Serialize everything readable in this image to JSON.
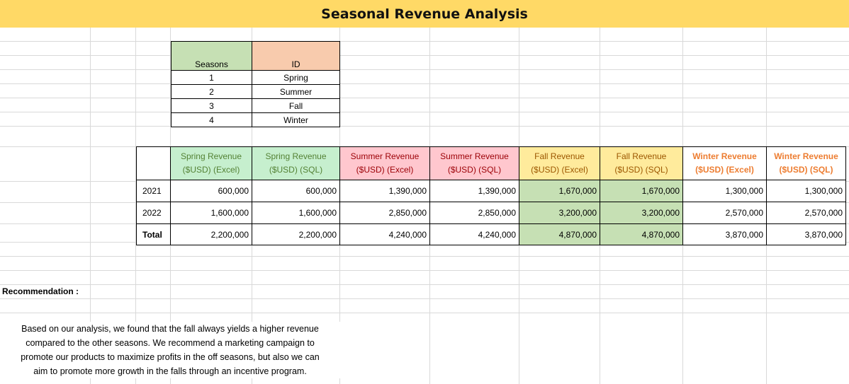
{
  "title": "Seasonal Revenue Analysis",
  "id_table": {
    "headers": [
      "Seasons",
      "ID"
    ],
    "rows": [
      [
        "1",
        "Spring"
      ],
      [
        "2",
        "Summer"
      ],
      [
        "3",
        "Fall"
      ],
      [
        "4",
        "Winter"
      ]
    ]
  },
  "revenue_table": {
    "headers": [
      [
        "Spring Revenue",
        "($USD) (Excel)"
      ],
      [
        "Spring Revenue",
        "($USD) (SQL)"
      ],
      [
        "Summer Revenue",
        "($USD) (Excel)"
      ],
      [
        "Summer Revenue",
        "($USD) (SQL)"
      ],
      [
        "Fall Revenue",
        "($USD) (Excel)"
      ],
      [
        "Fall Revenue",
        "($USD) (SQL)"
      ],
      [
        "Winter Revenue",
        "($USD) (Excel)"
      ],
      [
        "Winter Revenue",
        "($USD) (SQL)"
      ]
    ],
    "rows": [
      {
        "label": "2021",
        "values": [
          "600,000",
          "600,000",
          "1,390,000",
          "1,390,000",
          "1,670,000",
          "1,670,000",
          "1,300,000",
          "1,300,000"
        ]
      },
      {
        "label": "2022",
        "values": [
          "1,600,000",
          "1,600,000",
          "2,850,000",
          "2,850,000",
          "3,200,000",
          "3,200,000",
          "2,570,000",
          "2,570,000"
        ]
      },
      {
        "label": "Total",
        "values": [
          "2,200,000",
          "2,200,000",
          "4,240,000",
          "4,240,000",
          "4,870,000",
          "4,870,000",
          "3,870,000",
          "3,870,000"
        ]
      }
    ]
  },
  "recommendation": {
    "title": "Recommendation :",
    "lines": [
      "Based on our analysis, we found that the fall always yields a higher revenue",
      "compared to the other seasons. We recommend a marketing campaign to",
      "promote our products to maximize profits in the off seasons, but also we can",
      "aim to promote more growth in the falls through an incentive program."
    ]
  },
  "colors": {
    "title_bg": "#ffd966",
    "seasons_header": "#c6e0b4",
    "id_header": "#f8cbad",
    "spring_header": "#c6efce",
    "summer_header": "#ffc7ce",
    "fall_header": "#ffeb9c",
    "fall_values": "#c6e0b4",
    "winter_text": "#ed7d31"
  }
}
